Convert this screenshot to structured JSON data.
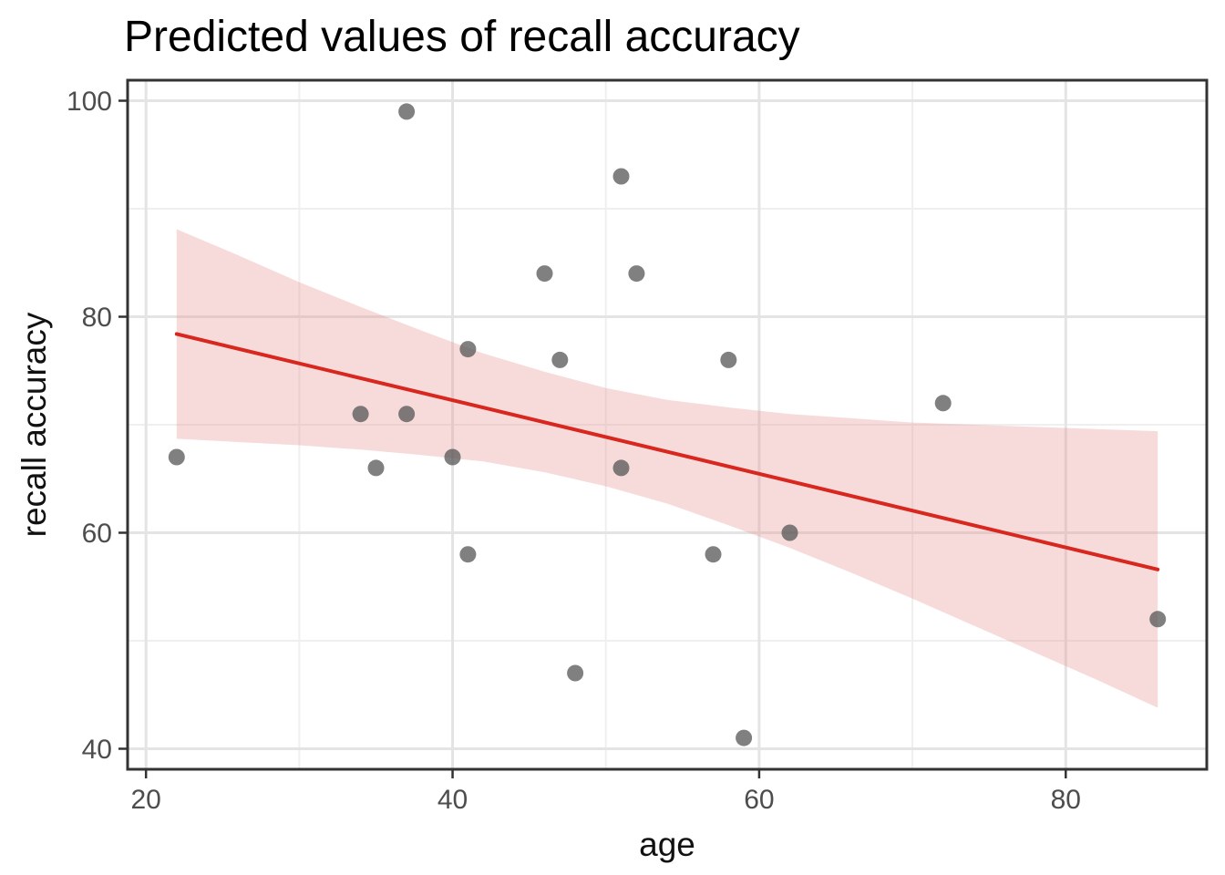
{
  "chart_data": {
    "type": "scatter",
    "title": "Predicted values of recall accuracy",
    "xlabel": "age",
    "ylabel": "recall accuracy",
    "xlim": [
      18.8,
      89.2
    ],
    "ylim": [
      38.1,
      101.9
    ],
    "x_ticks": [
      20,
      40,
      60,
      80
    ],
    "y_ticks": [
      40,
      60,
      80,
      100
    ],
    "x_minor_ticks": [
      30,
      50,
      70
    ],
    "y_minor_ticks": [
      50,
      70,
      90
    ],
    "grid": "major+minor",
    "legend": "none",
    "points": [
      [
        22,
        67
      ],
      [
        34,
        71
      ],
      [
        35,
        66
      ],
      [
        37,
        71
      ],
      [
        37,
        99
      ],
      [
        40,
        67
      ],
      [
        41,
        58
      ],
      [
        41,
        77
      ],
      [
        46,
        84
      ],
      [
        47,
        76
      ],
      [
        48,
        47
      ],
      [
        51,
        66
      ],
      [
        51,
        93
      ],
      [
        52,
        84
      ],
      [
        57,
        58
      ],
      [
        58,
        76
      ],
      [
        59,
        41
      ],
      [
        62,
        60
      ],
      [
        72,
        72
      ],
      [
        86,
        52
      ]
    ],
    "trend_line": {
      "kind": "linear-fit",
      "x": [
        22,
        86
      ],
      "y": [
        78.4,
        56.6
      ]
    },
    "ci_ribbon": {
      "x": [
        22,
        26,
        30,
        34,
        38,
        42,
        46,
        50,
        54,
        58,
        62,
        66,
        70,
        74,
        78,
        82,
        86
      ],
      "upper": [
        88.1,
        85.7,
        83.2,
        80.9,
        78.7,
        76.6,
        74.9,
        73.4,
        72.3,
        71.6,
        71.0,
        70.6,
        70.2,
        70.0,
        69.8,
        69.6,
        69.4
      ],
      "lower": [
        68.7,
        68.4,
        68.1,
        67.7,
        67.2,
        66.6,
        65.6,
        64.3,
        62.7,
        60.7,
        58.6,
        56.3,
        53.9,
        51.4,
        48.9,
        46.4,
        43.8
      ]
    },
    "colors": {
      "background": "#FFFFFF",
      "panel_border": "#333333",
      "grid_major": "#E4E4E4",
      "grid_minor": "#EFEFEF",
      "tick_mark": "#333333",
      "axis_text": "#4D4D4D",
      "axis_title": "#111111",
      "title": "#000000",
      "point": "#555555",
      "point_opacity": 0.75,
      "trend": "#D8271E",
      "ribbon": "#E99696",
      "ribbon_opacity": 0.35
    }
  }
}
